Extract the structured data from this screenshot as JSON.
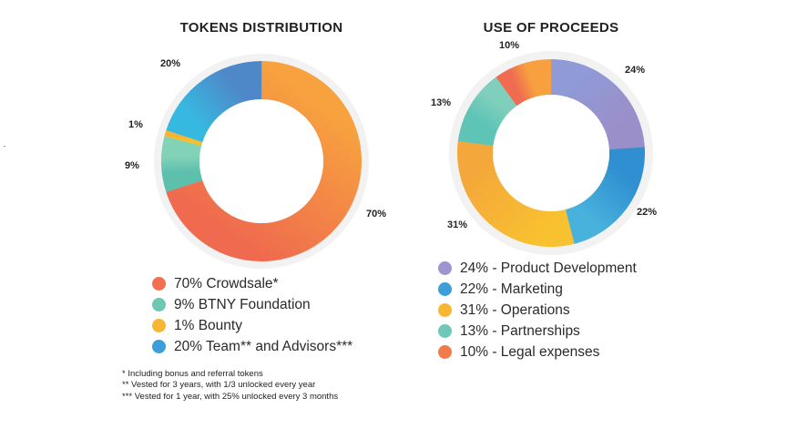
{
  "chart_data": [
    {
      "type": "pie",
      "title": "TOKENS DISTRIBUTION",
      "categories": [
        "Crowdsale",
        "BTNY Foundation",
        "Bounty",
        "Team and Advisors"
      ],
      "values": [
        70,
        9,
        1,
        20
      ],
      "value_labels": [
        "70%",
        "9%",
        "1%",
        "20%"
      ],
      "legend": [
        "70% Crowdsale*",
        "9% BTNY Foundation",
        "1% Bounty",
        "20% Team** and Advisors***"
      ],
      "colors": [
        [
          "#f7a23f",
          "#ef6a4e"
        ],
        [
          "#5dc0ad",
          "#82d2b8"
        ],
        [
          "#f5c02e",
          "#f9b233"
        ],
        [
          "#37b8e0",
          "#4f88c9"
        ]
      ],
      "legend_colors": [
        "#f26f52",
        "#6cc8b3",
        "#f7b733",
        "#3a9fd8"
      ],
      "donut": true
    },
    {
      "type": "pie",
      "title": "USE OF PROCEEDS",
      "categories": [
        "Product Development",
        "Marketing",
        "Operations",
        "Partnerships",
        "Legal expenses"
      ],
      "values": [
        24,
        22,
        31,
        13,
        10
      ],
      "value_labels": [
        "24%",
        "22%",
        "31%",
        "13%",
        "10%"
      ],
      "legend": [
        "24% - Product Development",
        "22% - Marketing",
        "31% - Operations",
        "13% - Partnerships",
        "10% - Legal expenses"
      ],
      "colors": [
        [
          "#8f9ad6",
          "#9b8fc9"
        ],
        [
          "#2f8fd0",
          "#48b2dd"
        ],
        [
          "#f8c130",
          "#f4a73a"
        ],
        [
          "#5dc4b6",
          "#80cfbc"
        ],
        [
          "#ef6c50",
          "#f7a03f"
        ]
      ],
      "legend_colors": [
        "#9b96cf",
        "#3d9fd8",
        "#f8b733",
        "#6fc8b8",
        "#f27b4a"
      ],
      "donut": true
    }
  ],
  "footnotes": [
    "* Including bonus and referral tokens",
    "** Vested for 3 years, with 1/3 unlocked every year",
    "*** Vested for 1 year, with 25% unlocked every 3 months"
  ]
}
